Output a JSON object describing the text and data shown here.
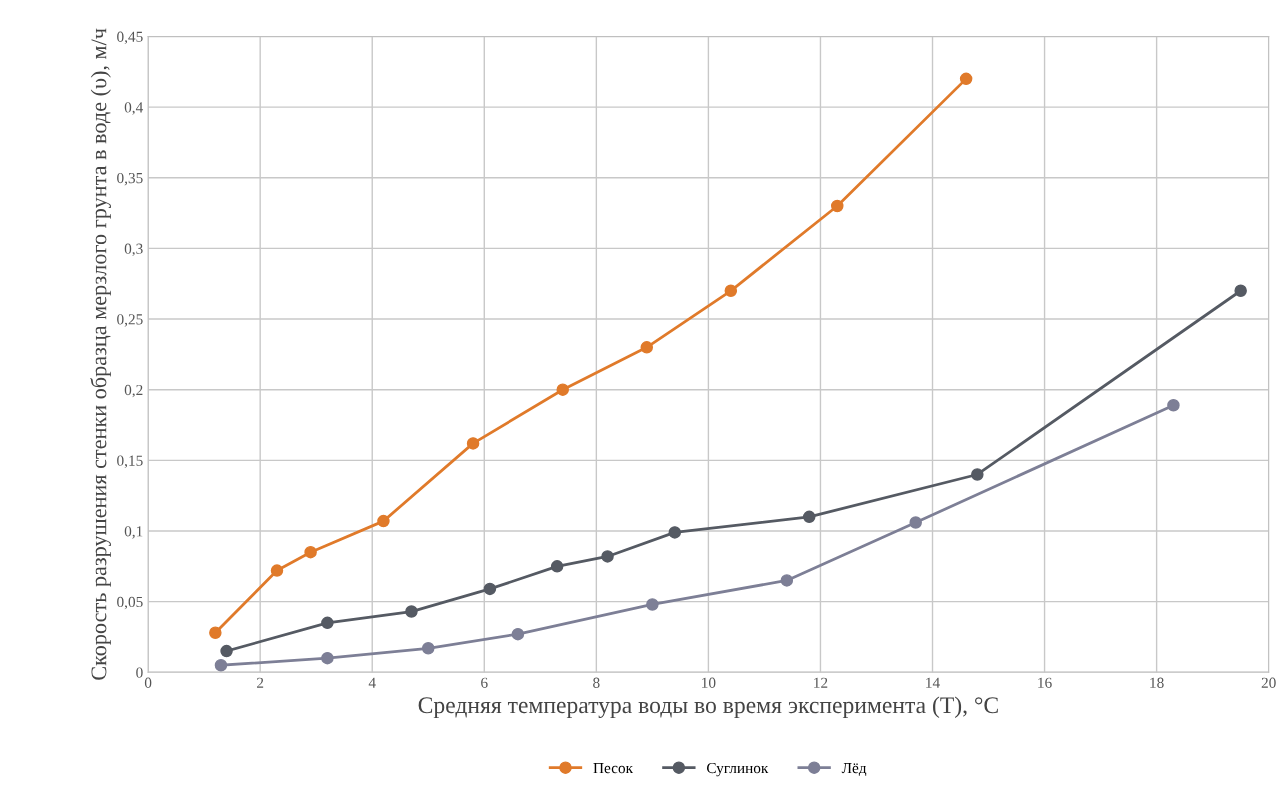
{
  "chart_data": {
    "type": "line",
    "xlabel": "Средняя температура воды во время эксперимента (Т), °С",
    "ylabel": "Скорость разрушения стенки образца мерзлого грунта в воде (υ), м/ч",
    "xlim": [
      0,
      20
    ],
    "xticks": [
      0,
      2,
      4,
      6,
      8,
      10,
      12,
      14,
      16,
      18,
      20
    ],
    "ylim": [
      0,
      0.45
    ],
    "yticks": [
      {
        "value": 0,
        "label": "0"
      },
      {
        "value": 0.05,
        "label": "0,05"
      },
      {
        "value": 0.1,
        "label": "0,1"
      },
      {
        "value": 0.15,
        "label": "0,15"
      },
      {
        "value": 0.2,
        "label": "0,2"
      },
      {
        "value": 0.25,
        "label": "0,25"
      },
      {
        "value": 0.3,
        "label": "0,3"
      },
      {
        "value": 0.35,
        "label": "0,35"
      },
      {
        "value": 0.4,
        "label": "0,4"
      },
      {
        "value": 0.45,
        "label": "0,45"
      }
    ],
    "grid": true,
    "legend": "bottom",
    "marker": "circle",
    "line_style": "solid",
    "series": [
      {
        "name": "Песок",
        "color": "#e07a2a",
        "x": [
          1.2,
          2.3,
          2.9,
          4.2,
          5.8,
          7.4,
          8.9,
          10.4,
          12.3,
          14.6
        ],
        "values": [
          0.028,
          0.072,
          0.085,
          0.107,
          0.162,
          0.2,
          0.23,
          0.27,
          0.33,
          0.42
        ]
      },
      {
        "name": "Суглинок",
        "color": "#555a63",
        "x": [
          1.4,
          3.2,
          4.7,
          6.1,
          7.3,
          8.2,
          9.4,
          11.8,
          14.8,
          19.5
        ],
        "values": [
          0.015,
          0.035,
          0.043,
          0.059,
          0.075,
          0.082,
          0.099,
          0.11,
          0.14,
          0.27
        ]
      },
      {
        "name": "Лёд",
        "color": "#7d7f96",
        "x": [
          1.3,
          3.2,
          5.0,
          6.6,
          9.0,
          11.4,
          13.7,
          18.3
        ],
        "values": [
          0.005,
          0.01,
          0.017,
          0.027,
          0.048,
          0.065,
          0.106,
          0.189
        ]
      }
    ]
  }
}
